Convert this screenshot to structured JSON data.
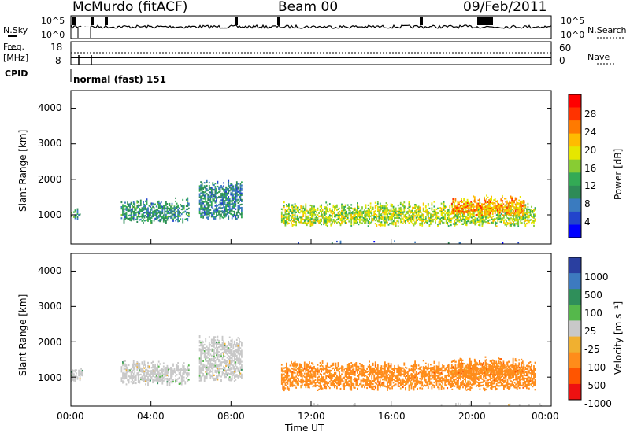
{
  "header": {
    "station": "McMurdo (fitACF)",
    "beam": "Beam 00",
    "date": "09/Feb/2011"
  },
  "top_panels": {
    "nsky_label": "N.Sky",
    "nsky_ticks": [
      "10^5",
      "10^0"
    ],
    "nsearch_label": "N.Search",
    "nsearch_ticks": [
      "10^5",
      "10^0"
    ],
    "freq_label": "Freq.",
    "freq_unit": "[MHz]",
    "freq_ticks": [
      "18",
      "8"
    ],
    "nave_label": "Nave",
    "nave_ticks": [
      "60",
      "0"
    ],
    "cpid_label": "CPID",
    "cpid_value": "normal (fast) 151"
  },
  "x_axis": {
    "label": "Time UT",
    "ticks": [
      "00:00",
      "04:00",
      "08:00",
      "12:00",
      "16:00",
      "20:00",
      "00:00"
    ]
  },
  "power_panel": {
    "ylabel": "Slant Range [km]",
    "yticks": [
      "4000",
      "3000",
      "2000",
      "1000"
    ],
    "colorbar_label": "Power [dB]",
    "colorbar_ticks": [
      "28",
      "24",
      "20",
      "16",
      "12",
      "8",
      "4"
    ],
    "colorbar_colors": [
      "#ff0000",
      "#ff3300",
      "#ff7a00",
      "#ffbb00",
      "#e6e600",
      "#88cc33",
      "#33aa55",
      "#2e8b57",
      "#3a7bbf",
      "#2244cc",
      "#0000ff"
    ]
  },
  "velocity_panel": {
    "ylabel": "Slant Range [km]",
    "yticks": [
      "4000",
      "3000",
      "2000",
      "1000"
    ],
    "colorbar_label": "Velocity [m s⁻¹]",
    "colorbar_ticks": [
      "1000",
      "500",
      "100",
      "25",
      "-25",
      "-100",
      "-500",
      "-1000"
    ],
    "colorbar_colors": [
      "#2a3fa0",
      "#3d7abf",
      "#2f8f5a",
      "#55b84b",
      "#c8c8c8",
      "#f0b030",
      "#ff8c1a",
      "#ff5500",
      "#ee1111"
    ]
  },
  "chart_data": [
    {
      "type": "heatmap",
      "title": "Beam 00",
      "xlabel": "Time UT",
      "ylabel": "Slant Range [km]",
      "x_range_hours": [
        0,
        24
      ],
      "ylim": [
        180,
        4500
      ],
      "value_label": "Power [dB]",
      "value_range": [
        0,
        30
      ],
      "echo_bands": [
        {
          "t": [
            0.0,
            0.6
          ],
          "range_km": [
            900,
            1200
          ],
          "power_db": 10
        },
        {
          "t": [
            2.5,
            5.9
          ],
          "range_km": [
            800,
            1500
          ],
          "power_db": 9
        },
        {
          "t": [
            6.4,
            8.5
          ],
          "range_km": [
            900,
            2000
          ],
          "power_db": 8
        },
        {
          "t": [
            10.5,
            23.2
          ],
          "range_km": [
            700,
            1400
          ],
          "power_db": 16
        },
        {
          "t": [
            19.0,
            22.6
          ],
          "range_km": [
            1000,
            1600
          ],
          "power_db": 22
        },
        {
          "t": [
            10.5,
            23.8
          ],
          "range_km": [
            220,
            300
          ],
          "power_db": 5
        }
      ]
    },
    {
      "type": "heatmap",
      "title": "Beam 00",
      "xlabel": "Time UT",
      "ylabel": "Slant Range [km]",
      "x_range_hours": [
        0,
        24
      ],
      "ylim": [
        180,
        4500
      ],
      "value_label": "Velocity [m s⁻¹]",
      "value_range": [
        -1000,
        1000
      ],
      "echo_bands": [
        {
          "t": [
            0.0,
            0.6
          ],
          "range_km": [
            900,
            1300
          ],
          "velocity_ms": 100
        },
        {
          "t": [
            2.5,
            5.9
          ],
          "range_km": [
            800,
            1500
          ],
          "velocity_ms": 100
        },
        {
          "t": [
            6.4,
            8.5
          ],
          "range_km": [
            900,
            2200
          ],
          "velocity_ms": 100
        },
        {
          "t": [
            10.5,
            23.2
          ],
          "range_km": [
            650,
            1500
          ],
          "velocity_ms": -500
        },
        {
          "t": [
            19.0,
            22.6
          ],
          "range_km": [
            1000,
            1600
          ],
          "velocity_ms": -500
        },
        {
          "t": [
            10.5,
            23.8
          ],
          "range_km": [
            220,
            300
          ],
          "velocity_ms": -25
        }
      ]
    }
  ]
}
